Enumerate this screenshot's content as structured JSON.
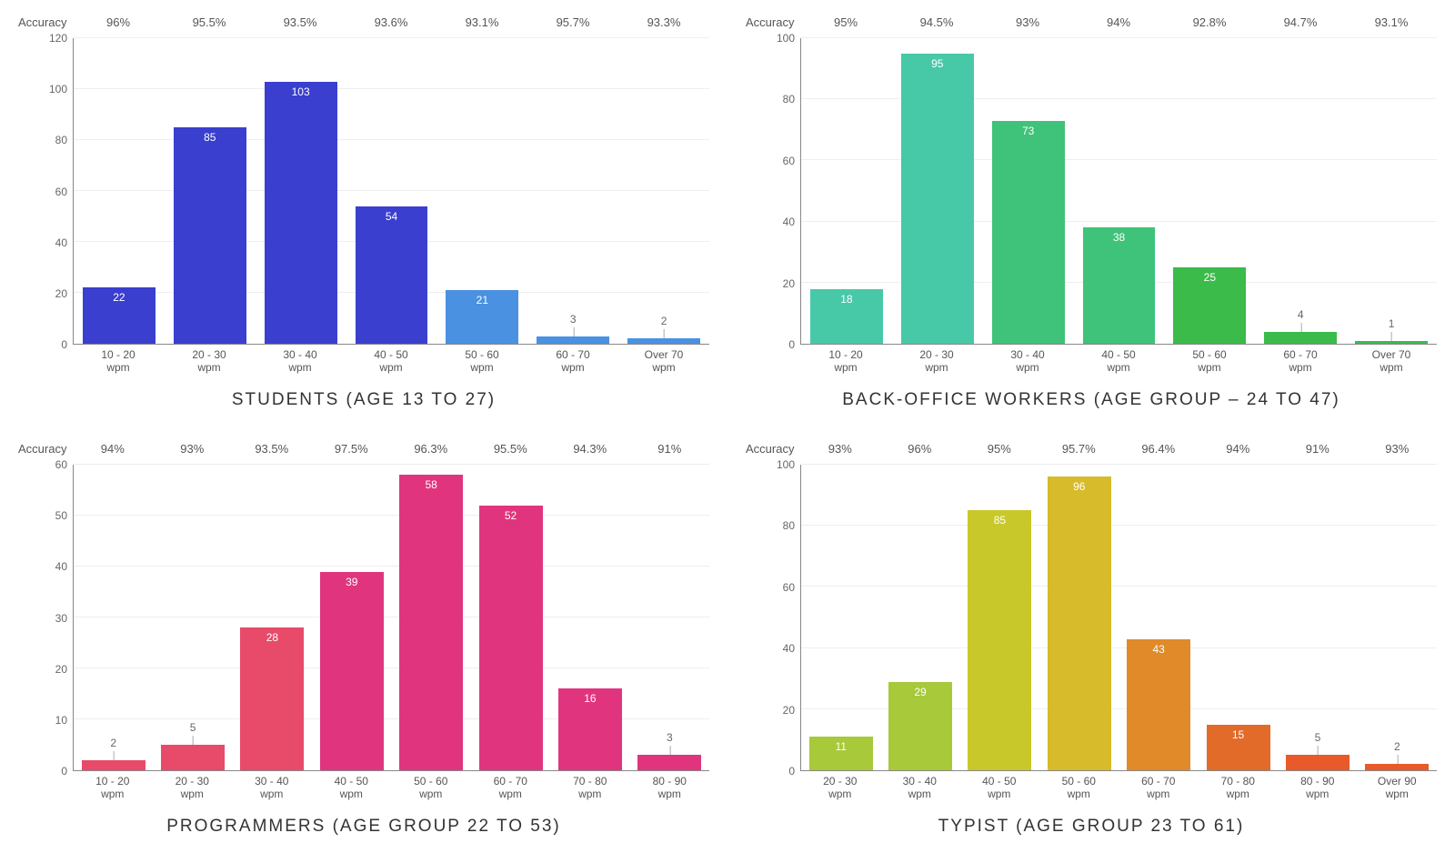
{
  "global": {
    "accuracy_label": "Accuracy",
    "background_color": "#ffffff",
    "axis_color": "#888888",
    "grid_color": "#eeeeee",
    "axis_font_size": 12,
    "acc_font_size": 13,
    "title_font_size": 19,
    "title_letter_spacing": 2,
    "bar_width_ratio": 0.8,
    "label_color_inside": "#ffffff",
    "label_color_above": "#666666",
    "label_above_threshold_ratio": 0.1
  },
  "charts": [
    {
      "title": "STUDENTS (AGE 13 TO 27)",
      "ylim": [
        0,
        120
      ],
      "ytick_step": 20,
      "categories": [
        "10 - 20 wpm",
        "20 - 30 wpm",
        "30 - 40 wpm",
        "40 - 50 wpm",
        "50 - 60 wpm",
        "60 - 70 wpm",
        "Over 70 wpm"
      ],
      "values": [
        22,
        85,
        103,
        54,
        21,
        3,
        2
      ],
      "accuracy": [
        "96%",
        "95.5%",
        "93.5%",
        "93.6%",
        "93.1%",
        "95.7%",
        "93.3%"
      ],
      "colors": [
        "#3a3fcf",
        "#3a3fcf",
        "#3a3fcf",
        "#3a3fcf",
        "#4a91e2",
        "#4a91e2",
        "#4a91e2"
      ]
    },
    {
      "title": "BACK-OFFICE WORKERS (AGE GROUP – 24 TO 47)",
      "ylim": [
        0,
        100
      ],
      "ytick_step": 20,
      "categories": [
        "10 - 20 wpm",
        "20 - 30 wpm",
        "30 - 40 wpm",
        "40 - 50 wpm",
        "50 - 60 wpm",
        "60 - 70 wpm",
        "Over 70 wpm"
      ],
      "values": [
        18,
        95,
        73,
        38,
        25,
        4,
        1
      ],
      "accuracy": [
        "95%",
        "94.5%",
        "93%",
        "94%",
        "92.8%",
        "94.7%",
        "93.1%"
      ],
      "colors": [
        "#47c9a8",
        "#47c9a8",
        "#3fc27a",
        "#3fc27a",
        "#3bbb4a",
        "#3bbb4a",
        "#3bbb4a"
      ]
    },
    {
      "title": "PROGRAMMERS (AGE GROUP 22 TO 53)",
      "ylim": [
        0,
        60
      ],
      "ytick_step": 10,
      "categories": [
        "10 - 20 wpm",
        "20 - 30 wpm",
        "30 - 40 wpm",
        "40 - 50 wpm",
        "50 - 60 wpm",
        "60 - 70 wpm",
        "70 - 80 wpm",
        "80 - 90 wpm"
      ],
      "values": [
        2,
        5,
        28,
        39,
        58,
        52,
        16,
        3
      ],
      "accuracy": [
        "94%",
        "93%",
        "93.5%",
        "97.5%",
        "96.3%",
        "95.5%",
        "94.3%",
        "91%"
      ],
      "colors": [
        "#e84a6a",
        "#e84a6a",
        "#e84a6a",
        "#e0357e",
        "#e0357e",
        "#e0357e",
        "#e0357e",
        "#e0357e"
      ]
    },
    {
      "title": "TYPIST (AGE GROUP 23 TO 61)",
      "ylim": [
        0,
        100
      ],
      "ytick_step": 20,
      "categories": [
        "20 - 30 wpm",
        "30 - 40 wpm",
        "40 - 50 wpm",
        "50 - 60 wpm",
        "60 - 70 wpm",
        "70 - 80 wpm",
        "80 - 90 wpm",
        "Over 90 wpm"
      ],
      "values": [
        11,
        29,
        85,
        96,
        43,
        15,
        5,
        2
      ],
      "accuracy": [
        "93%",
        "96%",
        "95%",
        "95.7%",
        "96.4%",
        "94%",
        "91%",
        "93%"
      ],
      "colors": [
        "#a7c93a",
        "#a7c93a",
        "#c9c82a",
        "#d7bb2a",
        "#e08a2a",
        "#e26b2a",
        "#e85a2a",
        "#e85a2a"
      ]
    }
  ]
}
